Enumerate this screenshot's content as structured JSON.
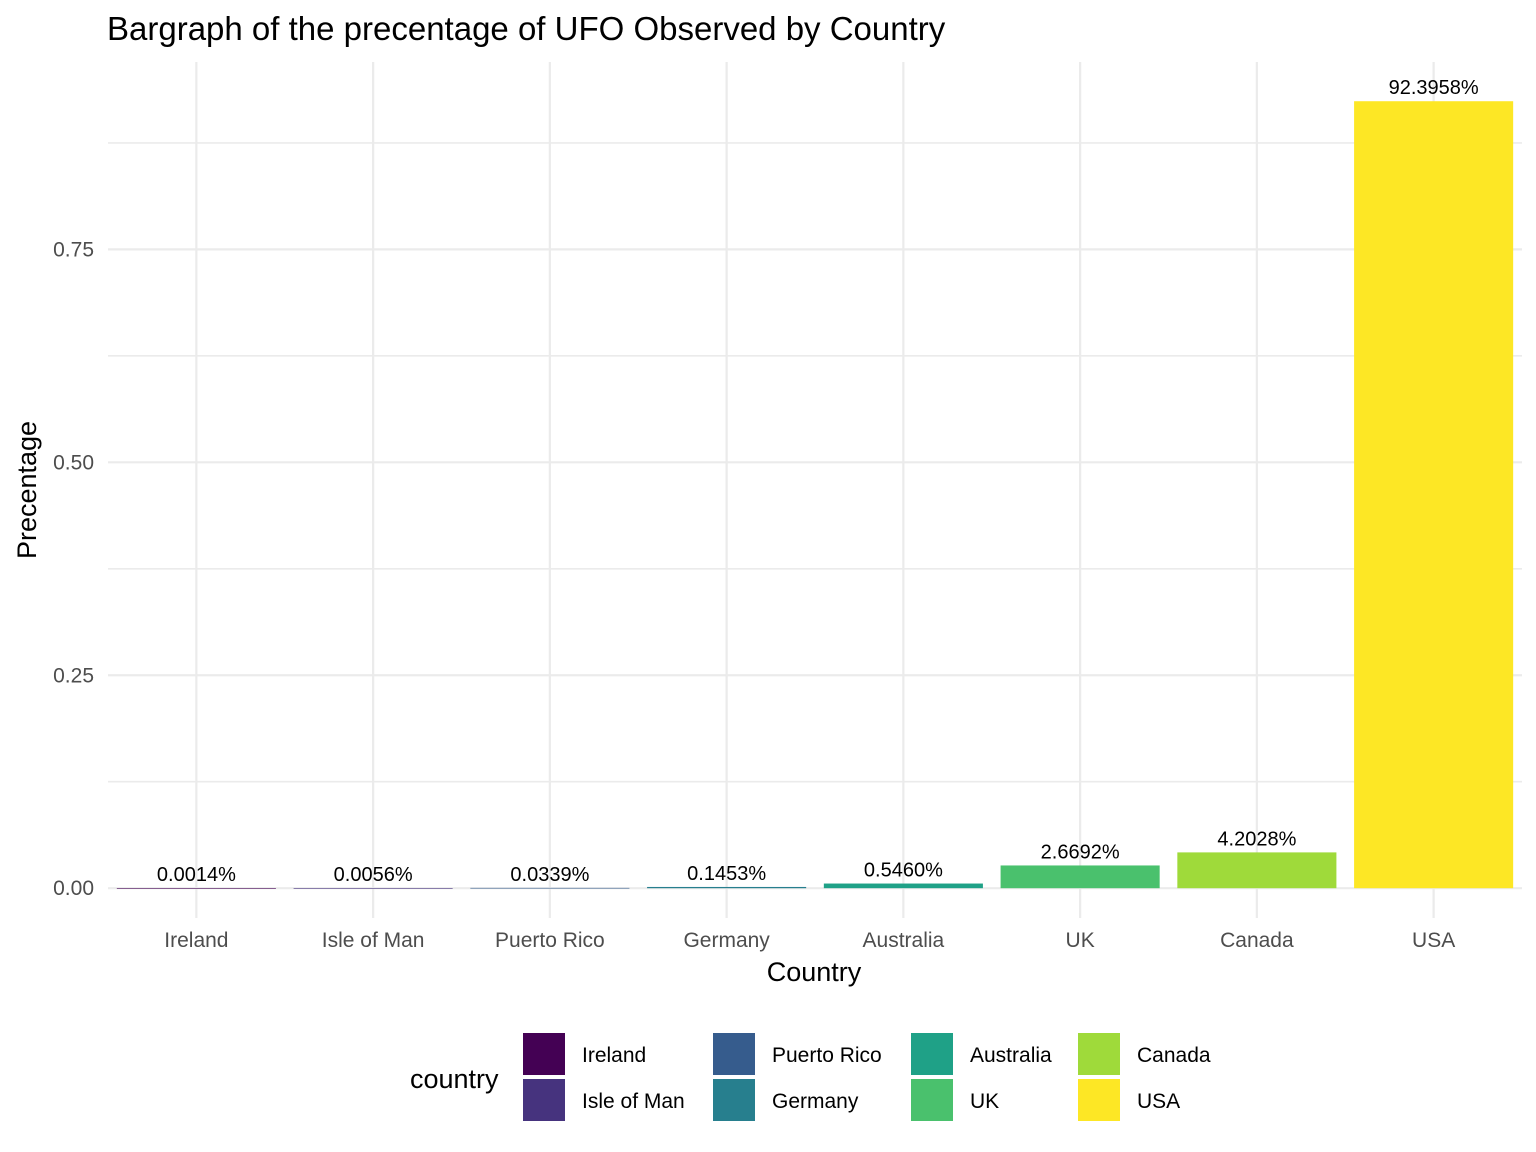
{
  "chart_data": {
    "type": "bar",
    "title": "Bargraph of the precentage of UFO Observed by Country",
    "xlabel": "Country",
    "ylabel": "Precentage",
    "categories": [
      "Ireland",
      "Isle of Man",
      "Puerto Rico",
      "Germany",
      "Australia",
      "UK",
      "Canada",
      "USA"
    ],
    "values": [
      1.4e-05,
      5.6e-05,
      0.000339,
      0.001453,
      0.00546,
      0.026692,
      0.042028,
      0.923958
    ],
    "data_labels": [
      "0.0014%",
      "0.0056%",
      "0.0339%",
      "0.1453%",
      "0.5460%",
      "2.6692%",
      "4.2028%",
      "92.3958%"
    ],
    "colors": [
      "#440154",
      "#46337E",
      "#365C8D",
      "#277F8E",
      "#1FA187",
      "#4AC16D",
      "#9FDA3A",
      "#FDE725"
    ],
    "ylim": [
      -0.035,
      0.97
    ],
    "y_ticks": [
      0,
      0.25,
      0.5,
      0.75
    ],
    "y_tick_labels": [
      "0.00",
      "0.25",
      "0.50",
      "0.75"
    ],
    "grid": true,
    "legend": {
      "title": "country",
      "placement": "bottom",
      "entries": [
        "Ireland",
        "Isle of Man",
        "Puerto Rico",
        "Germany",
        "Australia",
        "UK",
        "Canada",
        "USA"
      ]
    }
  }
}
